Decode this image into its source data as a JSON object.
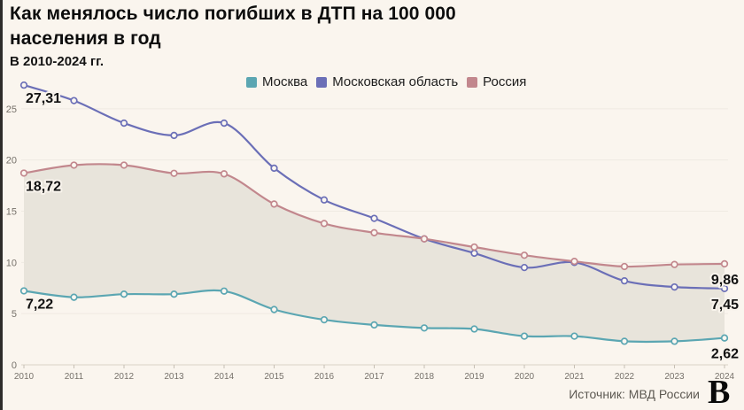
{
  "header": {
    "title_line1": "Как менялось число погибших в ДТП на 100 000",
    "title_line2": "населения в год",
    "subtitle": "В 2010-2024 гг."
  },
  "footer": {
    "source": "Источник: МВД России",
    "logo_letter": "В"
  },
  "colors": {
    "background": "#faf5ee",
    "area_fill": "#e8e4db",
    "axis_line": "#d9d2c6",
    "tick_mark": "#c7c0b4",
    "axis_text": "#76716a",
    "label_text": "#111111",
    "label_halo": "#f8f3ec"
  },
  "chart_data": {
    "type": "line",
    "title": "Как менялось число погибших в ДТП на 100 000 населения в год",
    "subtitle": "В 2010-2024 гг.",
    "x": [
      2010,
      2011,
      2012,
      2013,
      2014,
      2015,
      2016,
      2017,
      2018,
      2019,
      2020,
      2021,
      2022,
      2023,
      2024
    ],
    "series": [
      {
        "name": "Москва",
        "color": "#5ba6b2",
        "values": [
          7.22,
          6.6,
          6.9,
          6.9,
          7.2,
          5.4,
          4.4,
          3.9,
          3.6,
          3.5,
          2.8,
          2.8,
          2.3,
          2.3,
          2.62
        ],
        "start_label": "7,22",
        "end_label": "2,62"
      },
      {
        "name": "Московская область",
        "color": "#6b6fb7",
        "values": [
          27.31,
          25.8,
          23.6,
          22.4,
          23.6,
          19.2,
          16.1,
          14.3,
          12.3,
          10.9,
          9.5,
          10.0,
          8.2,
          7.6,
          7.45
        ],
        "start_label": "27,31",
        "end_label": "7,45"
      },
      {
        "name": "Россия",
        "color": "#c2878d",
        "values": [
          18.72,
          19.5,
          19.5,
          18.7,
          18.65,
          15.7,
          13.8,
          12.9,
          12.3,
          11.5,
          10.7,
          10.1,
          9.6,
          9.8,
          9.86
        ],
        "start_label": "18,72",
        "end_label": "9,86"
      }
    ],
    "area_between": [
      "Россия",
      "Москва"
    ],
    "yticks": [
      0,
      5,
      10,
      15,
      20,
      25
    ],
    "ylim": [
      0,
      28.5
    ],
    "grid": "faint-horizontal",
    "legend_position": "top-center",
    "ylabel": "",
    "xlabel": ""
  }
}
